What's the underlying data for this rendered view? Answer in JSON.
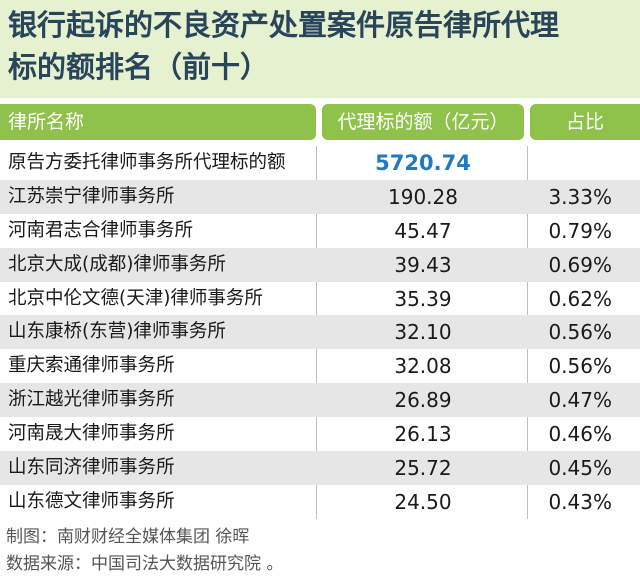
{
  "title_line1": "银行起诉的不良资产处置案件原告律所代理",
  "title_line2": "标的额排名（前十）",
  "headers": [
    "律所名称",
    "代理标的额（亿元）",
    "占比"
  ],
  "chart_data": {
    "type": "table",
    "columns": [
      "律所名称",
      "代理标的额（亿元）",
      "占比"
    ],
    "rows": [
      {
        "name": "原告方委托律师事务所代理标的额",
        "value": "5720.74",
        "share": ""
      },
      {
        "name": "江苏崇宁律师事务所",
        "value": "190.28",
        "share": "3.33%"
      },
      {
        "name": "河南君志合律师事务所",
        "value": "45.47",
        "share": "0.79%"
      },
      {
        "name": "北京大成(成都)律师事务所",
        "value": "39.43",
        "share": "0.69%"
      },
      {
        "name": "北京中伦文德(天津)律师事务所",
        "value": "35.39",
        "share": "0.62%"
      },
      {
        "name": "山东康桥(东营)律师事务所",
        "value": "32.10",
        "share": "0.56%"
      },
      {
        "name": "重庆索通律师事务所",
        "value": "32.08",
        "share": "0.56%"
      },
      {
        "name": "浙江越光律师事务所",
        "value": "26.89",
        "share": "0.47%"
      },
      {
        "name": "河南晟大律师事务所",
        "value": "26.13",
        "share": "0.46%"
      },
      {
        "name": "山东同济律师事务所",
        "value": "25.72",
        "share": "0.45%"
      },
      {
        "name": "山东德文律师事务所",
        "value": "24.50",
        "share": "0.43%"
      }
    ]
  },
  "footer_line1": "制图：南财财经全媒体集团 徐晖",
  "footer_line2": "数据来源：中国司法大数据研究院 。",
  "colors": {
    "title_bg": "#e5f1cf",
    "title_text": "#29455c",
    "header_bg": "#8fc24a",
    "highlight": "#1f7ac2",
    "alt_row": "#e6e6e6"
  }
}
